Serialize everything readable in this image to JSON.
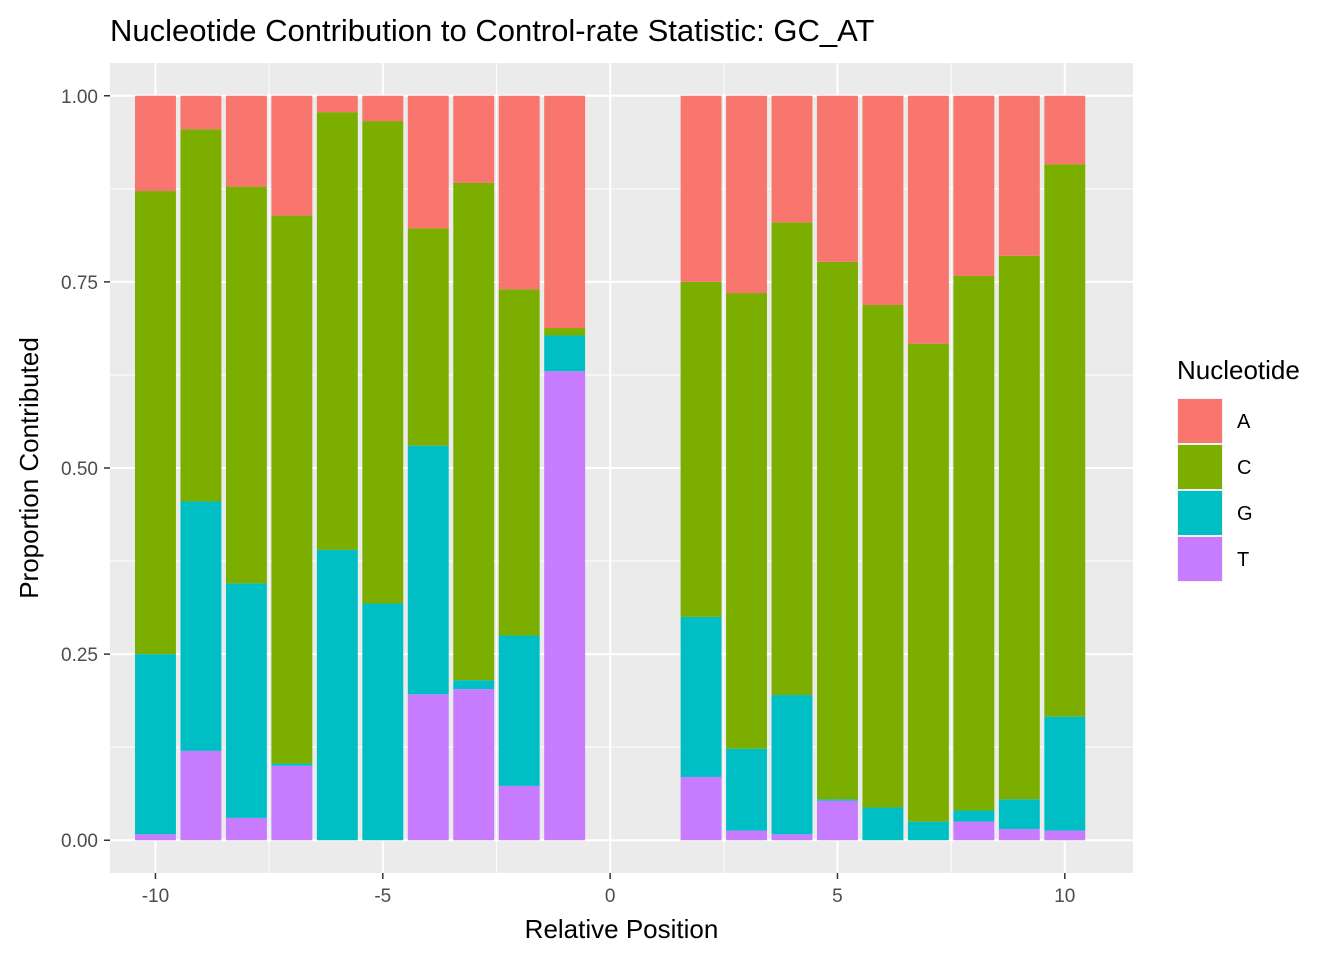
{
  "chart_data": {
    "type": "bar",
    "stacked": true,
    "title": "Nucleotide Contribution to Control-rate Statistic: GC_AT",
    "xlabel": "Relative Position",
    "ylabel": "Proportion Contributed",
    "xlim": [
      -11,
      11.5
    ],
    "ylim": [
      -0.044,
      1.044
    ],
    "x_ticks": [
      -10,
      -5,
      0,
      5,
      10
    ],
    "x_tick_labels": [
      "-10",
      "-5",
      "0",
      "5",
      "10"
    ],
    "y_ticks": [
      0,
      0.25,
      0.5,
      0.75,
      1.0
    ],
    "y_tick_labels": [
      "0.00",
      "0.25",
      "0.50",
      "0.75",
      "1.00"
    ],
    "x": [
      -10,
      -9,
      -8,
      -7,
      -6,
      -5,
      -4,
      -3,
      -2,
      -1,
      2,
      3,
      4,
      5,
      6,
      7,
      8,
      9,
      10
    ],
    "stack_order": [
      "T",
      "G",
      "C",
      "A"
    ],
    "series": [
      {
        "name": "T",
        "color": "#C77CFF",
        "values": [
          0.008,
          0.12,
          0.03,
          0.1,
          0.0,
          0.0,
          0.196,
          0.203,
          0.073,
          0.63,
          0.085,
          0.013,
          0.008,
          0.053,
          0.0,
          0.0,
          0.025,
          0.015,
          0.013
        ]
      },
      {
        "name": "G",
        "color": "#00BFC4",
        "values": [
          0.242,
          0.335,
          0.315,
          0.003,
          0.39,
          0.318,
          0.334,
          0.012,
          0.202,
          0.048,
          0.215,
          0.11,
          0.187,
          0.002,
          0.044,
          0.025,
          0.015,
          0.04,
          0.153
        ]
      },
      {
        "name": "C",
        "color": "#7CAE00",
        "values": [
          0.622,
          0.5,
          0.533,
          0.736,
          0.588,
          0.648,
          0.292,
          0.668,
          0.465,
          0.01,
          0.45,
          0.612,
          0.635,
          0.722,
          0.675,
          0.642,
          0.718,
          0.73,
          0.742
        ]
      },
      {
        "name": "A",
        "color": "#F8766D",
        "values": [
          0.128,
          0.045,
          0.122,
          0.161,
          0.022,
          0.034,
          0.178,
          0.117,
          0.26,
          0.312,
          0.25,
          0.265,
          0.17,
          0.223,
          0.281,
          0.333,
          0.242,
          0.215,
          0.092
        ]
      }
    ],
    "legend": {
      "title": "Nucleotide",
      "position": "right",
      "entries": [
        {
          "label": "A",
          "color": "#F8766D"
        },
        {
          "label": "C",
          "color": "#7CAE00"
        },
        {
          "label": "G",
          "color": "#00BFC4"
        },
        {
          "label": "T",
          "color": "#C77CFF"
        }
      ]
    },
    "panel_background": "#EBEBEB",
    "grid": true,
    "grid_color": "#FFFFFF"
  }
}
